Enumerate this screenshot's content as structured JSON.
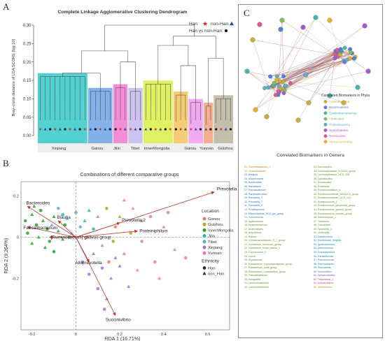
{
  "panels": {
    "a": "A",
    "b": "B",
    "c": "C"
  },
  "chart_data": [
    {
      "type": "dendrogram",
      "title": "Complete Linkage Agglomerative Clustering Dendrogram",
      "ylabel": "Bray–curtis distance of LDA SCORE (log 10)",
      "ylim": [
        0,
        0.3
      ],
      "yticks": [
        "0.00",
        "0.05",
        "0.10",
        "0.15",
        "0.20",
        "0.25",
        "0.30"
      ],
      "legend": [
        {
          "label": "Han:",
          "marker": "star",
          "color": "#d62728"
        },
        {
          "label": "non-Han:",
          "marker": "triangle",
          "color": "#1f4fa8"
        },
        {
          "label": "Han vs non-Han:",
          "marker": "circle",
          "color": "#111111"
        }
      ],
      "groups": [
        {
          "name": "Xinjiang",
          "color": "#35c8c8",
          "n": 10,
          "height": 0.16
        },
        {
          "name": "Gansu",
          "color": "#6fa3e6",
          "n": 5,
          "height": 0.12
        },
        {
          "name": "Jilin",
          "color": "#f07ad1",
          "n": 3,
          "height": 0.13
        },
        {
          "name": "Tibet",
          "color": "#c4b8ee",
          "n": 3,
          "height": 0.12
        },
        {
          "name": "InnerMongolia",
          "color": "#d8ee46",
          "n": 6,
          "height": 0.14
        },
        {
          "name": "InnerMongolia_b",
          "color": "#f3c25a",
          "n": 3,
          "height": 0.11
        },
        {
          "name": "Gansu",
          "color": "#ef9bef",
          "n": 3,
          "height": 0.09
        },
        {
          "name": "Yunnan",
          "color": "#f2a07e",
          "n": 2,
          "height": 0.08
        },
        {
          "name": "Guizhou",
          "color": "#b8b49b",
          "n": 4,
          "height": 0.1
        }
      ],
      "group_labels": [
        "Xinjiang",
        "Gansu",
        "Jilin",
        "Tibet",
        "InnerMongolia",
        "Gansu",
        "Yunnan",
        "Guizhou"
      ],
      "merges": [
        0.17,
        0.2,
        0.19,
        0.21,
        0.245,
        0.23,
        0.27,
        0.3
      ]
    },
    {
      "type": "scatter",
      "title": "Combinations of different comparative groups",
      "xlabel": "RDA 1 (16.71%)",
      "ylabel": "RDA 2 (9.264%)",
      "xlim": [
        -0.25,
        0.7
      ],
      "ylim": [
        -0.45,
        0.27
      ],
      "xticks": [
        {
          "value": -0.2,
          "label": "-0.2"
        },
        {
          "value": 0,
          "label": "0"
        },
        {
          "value": 0.2,
          "label": "0.2"
        },
        {
          "value": 0.4,
          "label": "0.4"
        },
        {
          "value": 0.6,
          "label": "0.6"
        }
      ],
      "yticks": [
        {
          "value": 0.2,
          "label": "0.2"
        },
        {
          "value": 0,
          "label": "0"
        },
        {
          "value": -0.2,
          "label": "-0.2"
        }
      ],
      "legend_location_title": "Location",
      "legend_ethnicity_title": "Ethnicity",
      "locations": [
        {
          "name": "Gansu",
          "color": "#e87b73"
        },
        {
          "name": "Guizhou",
          "color": "#b9a21e"
        },
        {
          "name": "InnerMongolia",
          "color": "#2aa12a"
        },
        {
          "name": "Jilin",
          "color": "#29b4b2"
        },
        {
          "name": "Tibet",
          "color": "#5aa8e6"
        },
        {
          "name": "Xinjiang",
          "color": "#9c73dd"
        },
        {
          "name": "Yunnan",
          "color": "#e874c4"
        }
      ],
      "ethnicity": [
        {
          "name": "Han",
          "marker": "circle"
        },
        {
          "name": "non_Han",
          "marker": "triangle"
        }
      ],
      "arrows": [
        {
          "label": "Prevotella 9",
          "x": 0.63,
          "y": 0.22
        },
        {
          "label": "Bacteroides",
          "x": -0.22,
          "y": 0.15
        },
        {
          "label": "Blautia",
          "x": -0.08,
          "y": 0.08
        },
        {
          "label": "Faecalibacterium",
          "x": -0.22,
          "y": 0.05
        },
        {
          "label": "[Ruminococcus] gnavus group",
          "x": -0.12,
          "y": 0.0
        },
        {
          "label": "Prevotella 2",
          "x": 0.2,
          "y": 0.07
        },
        {
          "label": "Proteiniphilum",
          "x": 0.28,
          "y": 0.03
        },
        {
          "label": "Alloprevotella",
          "x": 0.06,
          "y": -0.12
        },
        {
          "label": "Succinivibrio",
          "x": 0.18,
          "y": -0.38
        }
      ],
      "points": [
        {
          "loc": 2,
          "e": 1,
          "x": -0.2,
          "y": 0.11
        },
        {
          "loc": 2,
          "e": 0,
          "x": -0.18,
          "y": 0.06
        },
        {
          "loc": 2,
          "e": 1,
          "x": -0.15,
          "y": 0.08
        },
        {
          "loc": 2,
          "e": 0,
          "x": -0.22,
          "y": 0.02
        },
        {
          "loc": 2,
          "e": 1,
          "x": -0.17,
          "y": 0.0
        },
        {
          "loc": 2,
          "e": 0,
          "x": -0.13,
          "y": 0.04
        },
        {
          "loc": 2,
          "e": 1,
          "x": -0.2,
          "y": -0.03
        },
        {
          "loc": 2,
          "e": 0,
          "x": -0.12,
          "y": -0.02
        },
        {
          "loc": 2,
          "e": 1,
          "x": -0.1,
          "y": 0.1
        },
        {
          "loc": 2,
          "e": 0,
          "x": -0.16,
          "y": 0.13
        },
        {
          "loc": 2,
          "e": 1,
          "x": -0.08,
          "y": 0.03
        },
        {
          "loc": 2,
          "e": 0,
          "x": -0.23,
          "y": 0.08
        },
        {
          "loc": 2,
          "e": 1,
          "x": -0.14,
          "y": -0.05
        },
        {
          "loc": 2,
          "e": 0,
          "x": -0.05,
          "y": 0.06
        },
        {
          "loc": 2,
          "e": 1,
          "x": -0.19,
          "y": 0.15
        },
        {
          "loc": 2,
          "e": 0,
          "x": -0.1,
          "y": -0.07
        },
        {
          "loc": 2,
          "e": 1,
          "x": -0.06,
          "y": -0.01
        },
        {
          "loc": 4,
          "e": 0,
          "x": -0.08,
          "y": 0.14
        },
        {
          "loc": 4,
          "e": 1,
          "x": -0.04,
          "y": 0.09
        },
        {
          "loc": 4,
          "e": 0,
          "x": 0.0,
          "y": 0.12
        },
        {
          "loc": 4,
          "e": 1,
          "x": -0.11,
          "y": 0.06
        },
        {
          "loc": 4,
          "e": 0,
          "x": 0.02,
          "y": 0.05
        },
        {
          "loc": 4,
          "e": 1,
          "x": -0.02,
          "y": 0.02
        },
        {
          "loc": 3,
          "e": 0,
          "x": -0.06,
          "y": 0.11
        },
        {
          "loc": 3,
          "e": 1,
          "x": 0.04,
          "y": 0.08
        },
        {
          "loc": 3,
          "e": 0,
          "x": -0.03,
          "y": 0.0
        },
        {
          "loc": 3,
          "e": 1,
          "x": 0.06,
          "y": 0.13
        },
        {
          "loc": 3,
          "e": 0,
          "x": 0.08,
          "y": 0.04
        },
        {
          "loc": 0,
          "e": 1,
          "x": 0.1,
          "y": 0.1
        },
        {
          "loc": 0,
          "e": 0,
          "x": 0.05,
          "y": 0.0
        },
        {
          "loc": 0,
          "e": 1,
          "x": 0.12,
          "y": -0.04
        },
        {
          "loc": 0,
          "e": 0,
          "x": 0.18,
          "y": 0.05
        },
        {
          "loc": 0,
          "e": 1,
          "x": 0.22,
          "y": -0.08
        },
        {
          "loc": 0,
          "e": 0,
          "x": 0.15,
          "y": -0.12
        },
        {
          "loc": 1,
          "e": 0,
          "x": 0.14,
          "y": 0.14
        },
        {
          "loc": 1,
          "e": 1,
          "x": 0.2,
          "y": 0.1
        },
        {
          "loc": 1,
          "e": 0,
          "x": 0.25,
          "y": 0.02
        },
        {
          "loc": 1,
          "e": 1,
          "x": 0.3,
          "y": 0.08
        },
        {
          "loc": 1,
          "e": 0,
          "x": 0.17,
          "y": -0.02
        },
        {
          "loc": 5,
          "e": 1,
          "x": 0.08,
          "y": -0.08
        },
        {
          "loc": 5,
          "e": 0,
          "x": 0.12,
          "y": -0.15
        },
        {
          "loc": 5,
          "e": 1,
          "x": 0.16,
          "y": -0.2
        },
        {
          "loc": 5,
          "e": 0,
          "x": 0.1,
          "y": -0.25
        },
        {
          "loc": 5,
          "e": 1,
          "x": 0.14,
          "y": -0.3
        },
        {
          "loc": 5,
          "e": 0,
          "x": 0.06,
          "y": -0.18
        },
        {
          "loc": 5,
          "e": 1,
          "x": 0.2,
          "y": -0.14
        },
        {
          "loc": 5,
          "e": 0,
          "x": 0.13,
          "y": -0.35
        },
        {
          "loc": 5,
          "e": 1,
          "x": 0.24,
          "y": -0.24
        },
        {
          "loc": 5,
          "e": 0,
          "x": 0.03,
          "y": -0.12
        },
        {
          "loc": 5,
          "e": 1,
          "x": 0.18,
          "y": -0.1
        },
        {
          "loc": 6,
          "e": 1,
          "x": 0.26,
          "y": 0.14
        },
        {
          "loc": 6,
          "e": 0,
          "x": 0.34,
          "y": 0.1
        },
        {
          "loc": 6,
          "e": 1,
          "x": 0.4,
          "y": 0.05
        },
        {
          "loc": 6,
          "e": 0,
          "x": 0.3,
          "y": -0.02
        },
        {
          "loc": 6,
          "e": 1,
          "x": 0.45,
          "y": -0.06
        },
        {
          "loc": 6,
          "e": 0,
          "x": 0.36,
          "y": -0.12
        },
        {
          "loc": 6,
          "e": 1,
          "x": 0.28,
          "y": -0.16
        },
        {
          "loc": 6,
          "e": 0,
          "x": 0.42,
          "y": 0.12
        },
        {
          "loc": 6,
          "e": 1,
          "x": 0.38,
          "y": -0.2
        },
        {
          "loc": 6,
          "e": 0,
          "x": 0.5,
          "y": -0.1
        },
        {
          "loc": 6,
          "e": 1,
          "x": 0.22,
          "y": 0.18
        }
      ]
    },
    {
      "type": "network",
      "legend_title": "Correlated Biomarkers in Phyla",
      "phyla": [
        {
          "name": "Actinobacteria",
          "color": "#c9ad3a"
        },
        {
          "name": "Bacteroidetes",
          "color": "#4f83d6"
        },
        {
          "name": "Epsilonbacteraeota",
          "color": "#48b6a8"
        },
        {
          "name": "Firmicutes",
          "color": "#87b85a"
        },
        {
          "name": "Proteobacteria",
          "color": "#6fa6c9"
        },
        {
          "name": "Spirochaetes",
          "color": "#a45acb"
        },
        {
          "name": "Tenericutes",
          "color": "#d65a9a"
        },
        {
          "name": "Verrucomicrobia",
          "color": "#e0b32e"
        }
      ],
      "genera_title": "Correlated Biomarkers in Genera",
      "genera_col1": [
        {
          "label": "01. Corynebacterium_1",
          "color": "#b88a12"
        },
        {
          "label": "02. Glutamicibacter",
          "color": "#b88a12"
        },
        {
          "label": "03. Alistipes",
          "color": "#2f6fc6"
        },
        {
          "label": "04. Alloprevotella",
          "color": "#2f6fc6"
        },
        {
          "label": "05. Bacteroides",
          "color": "#2f6fc6"
        },
        {
          "label": "06. Barnesiella",
          "color": "#2f6fc6"
        },
        {
          "label": "07. Flavobacterium",
          "color": "#2f6fc6"
        },
        {
          "label": "08. Parabacteroides",
          "color": "#2f6fc6"
        },
        {
          "label": "09. Prevotella_2",
          "color": "#2f6fc6"
        },
        {
          "label": "10. Prevotella_7",
          "color": "#2f6fc6"
        },
        {
          "label": "11. Prevotella_9",
          "color": "#2f6fc6"
        },
        {
          "label": "12. Proteiniphilum",
          "color": "#2f6fc6"
        },
        {
          "label": "13. Rikenellaceae_RC9_gut_group",
          "color": "#2f6fc6"
        },
        {
          "label": "14. Sulfurimonas",
          "color": "#2a9a8a"
        },
        {
          "label": "15. Agathobacter",
          "color": "#5e8f2e"
        },
        {
          "label": "16. Anaerobutyricum",
          "color": "#5e8f2e"
        },
        {
          "label": "17. Anaerostipes",
          "color": "#5e8f2e"
        },
        {
          "label": "18. Atopobiosis",
          "color": "#5e8f2e"
        },
        {
          "label": "19. Blautia",
          "color": "#5e8f2e"
        },
        {
          "label": "20. Christensenellaceae_R_7_group",
          "color": "#5e8f2e"
        },
        {
          "label": "21. Clostridium_innocuum_group",
          "color": "#5e8f2e"
        },
        {
          "label": "22. Clostridium_sensu_stricto_1",
          "color": "#5e8f2e"
        },
        {
          "label": "23. Coprococcus_3",
          "color": "#5e8f2e"
        },
        {
          "label": "24. Dorea",
          "color": "#5e8f2e"
        },
        {
          "label": "25. Erysipelotrix",
          "color": "#5e8f2e"
        },
        {
          "label": "26. Eubacterium_coprostanoligenes_group",
          "color": "#5e8f2e"
        },
        {
          "label": "27. Eubacterium_hallii_group",
          "color": "#5e8f2e"
        },
        {
          "label": "28. Eubacterium_ruminantium_group",
          "color": "#5e8f2e"
        },
        {
          "label": "29. Faecalibacterium",
          "color": "#5e8f2e"
        },
        {
          "label": "30. Hungatella",
          "color": "#5e8f2e"
        },
        {
          "label": "31. Lachnoclostridium",
          "color": "#5e8f2e"
        },
        {
          "label": "32. Lachnoclostridium",
          "color": "#5e8f2e"
        }
      ],
      "genera_col2": [
        {
          "label": "33. Lachnospira",
          "color": "#5e8f2e"
        },
        {
          "label": "34. Lachnospiraceae_FCS020_group",
          "color": "#5e8f2e"
        },
        {
          "label": "35. Lachnospiraceae_UCG_006",
          "color": "#5e8f2e"
        },
        {
          "label": "36. Lysinibacillus",
          "color": "#5e8f2e"
        },
        {
          "label": "37. Romboutsia",
          "color": "#5e8f2e"
        },
        {
          "label": "38. Roseburia",
          "color": "#5e8f2e"
        },
        {
          "label": "39. Ruminiclostridium_6",
          "color": "#5e8f2e"
        },
        {
          "label": "40. Ruminococcaceae_NK4A214_group",
          "color": "#5e8f2e"
        },
        {
          "label": "41. Ruminococcaceae_UCG_014",
          "color": "#5e8f2e"
        },
        {
          "label": "42. Ruminococcus_1",
          "color": "#5e8f2e"
        },
        {
          "label": "43. Ruminococcus_gauvreauii_group",
          "color": "#5e8f2e"
        },
        {
          "label": "44. Ruminococcus_gnavus_group",
          "color": "#5e8f2e"
        },
        {
          "label": "45. Ruminococcus_torques_group",
          "color": "#5e8f2e"
        },
        {
          "label": "46. Selenomonas_1",
          "color": "#5e8f2e"
        },
        {
          "label": "47. Tissierella",
          "color": "#5e8f2e"
        },
        {
          "label": "48. Turicibacter",
          "color": "#5e8f2e"
        },
        {
          "label": "49. Tyzzerella_4",
          "color": "#5e8f2e"
        },
        {
          "label": "50. Veillonella",
          "color": "#5e8f2e"
        },
        {
          "label": "51. Desulfovibrio",
          "color": "#1f86b0"
        },
        {
          "label": "52. Escherichia_Shigella",
          "color": "#1f86b0"
        },
        {
          "label": "53. Ignatzschineria",
          "color": "#1f86b0"
        },
        {
          "label": "54. Marinomonas",
          "color": "#1f86b0"
        },
        {
          "label": "55. Oceanisphaera",
          "color": "#1f86b0"
        },
        {
          "label": "56. Parasutterella",
          "color": "#1f86b0"
        },
        {
          "label": "57. Pseudomonas",
          "color": "#1f86b0"
        },
        {
          "label": "58. Psychrobacter",
          "color": "#1f86b0"
        },
        {
          "label": "59. Shewanella",
          "color": "#1f86b0"
        },
        {
          "label": "60. Succinivibrio",
          "color": "#1f86b0"
        },
        {
          "label": "61. Sphaerochaeta",
          "color": "#8a3fb8"
        },
        {
          "label": "62. Treponema_2",
          "color": "#8a3fb8"
        },
        {
          "label": "63. Acholeplasma",
          "color": "#c83a7e"
        },
        {
          "label": "64. Akkermansia",
          "color": "#d09b12"
        }
      ]
    }
  ]
}
